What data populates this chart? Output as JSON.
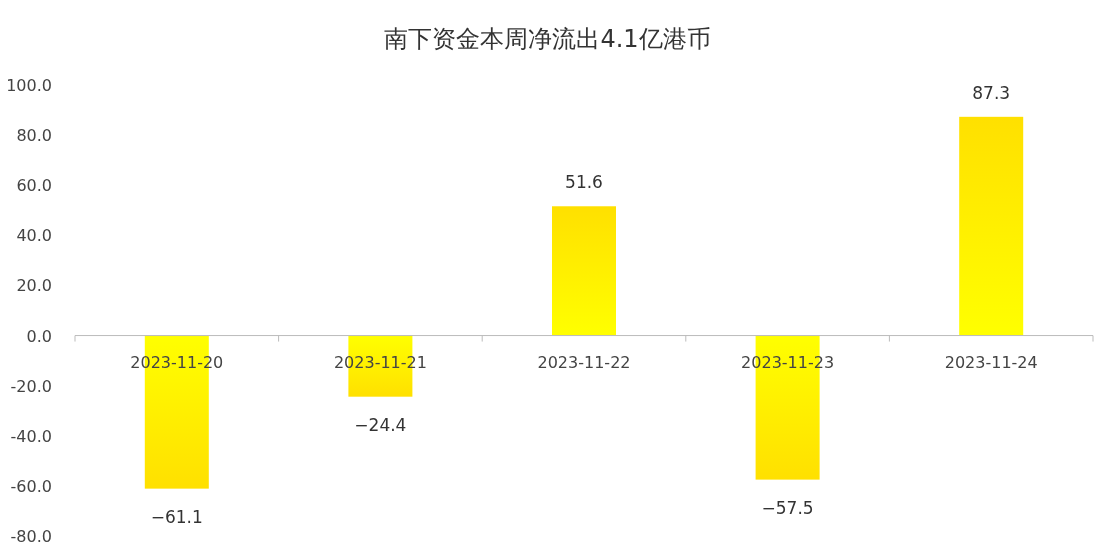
{
  "chart_data": {
    "type": "bar",
    "title": "南下资金本周净流出4.1亿港币",
    "categories": [
      "2023-11-20",
      "2023-11-21",
      "2023-11-22",
      "2023-11-23",
      "2023-11-24"
    ],
    "values": [
      -61.1,
      -24.4,
      51.6,
      -57.5,
      87.3
    ],
    "color": "#ffe000",
    "ylim": [
      -80,
      100
    ],
    "yticks": [
      {
        "value": -80,
        "label": "-80.0"
      },
      {
        "value": -60,
        "label": "-60.0"
      },
      {
        "value": -40,
        "label": "-40.0"
      },
      {
        "value": -20,
        "label": "-20.0"
      },
      {
        "value": 0,
        "label": "0.0"
      },
      {
        "value": 20,
        "label": "20.0"
      },
      {
        "value": 40,
        "label": "40.0"
      },
      {
        "value": 60,
        "label": "60.0"
      },
      {
        "value": 80,
        "label": "80.0"
      },
      {
        "value": 100,
        "label": "100.0"
      }
    ],
    "data_labels": true
  }
}
